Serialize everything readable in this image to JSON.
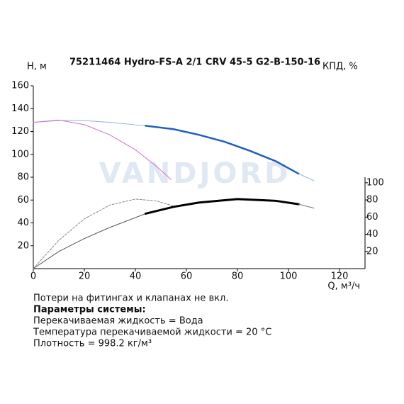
{
  "chart_data": {
    "type": "line",
    "title": "75211464 Hydro-FS-A 2/1 CRV 45-5 G2-B-150-16",
    "y_label": "H, м",
    "y2_label": "КПД, %",
    "x_label": "Q, м³/ч",
    "watermark": "VANDJORD",
    "xlim": [
      0,
      130
    ],
    "xticks": [
      0,
      20,
      40,
      60,
      80,
      100,
      120
    ],
    "ylim": [
      0,
      160
    ],
    "yticks": [
      20,
      40,
      60,
      80,
      100,
      120,
      140,
      160
    ],
    "y2lim": [
      0,
      213
    ],
    "y2ticks": [
      20,
      40,
      60,
      80,
      100
    ],
    "series": [
      {
        "color": "#8fb3dd",
        "width": 1,
        "x": [
          0,
          10,
          20,
          30,
          44
        ],
        "values": [
          128,
          129.5,
          129.5,
          128,
          125
        ]
      },
      {
        "color": "#1f5fbf",
        "width": 2.5,
        "x": [
          44,
          55,
          65,
          75,
          85,
          95,
          104
        ],
        "values": [
          125,
          122,
          117,
          111,
          103,
          94,
          83
        ]
      },
      {
        "color": "#8fb3dd",
        "width": 1,
        "x": [
          104,
          110
        ],
        "values": [
          83,
          77
        ]
      },
      {
        "color": "#d070d0",
        "width": 1,
        "x": [
          0,
          10,
          20,
          30,
          40,
          48,
          54
        ],
        "values": [
          128,
          130,
          126,
          117,
          104,
          90,
          78
        ]
      },
      {
        "color": "#555555",
        "width": 1,
        "axis": "y2",
        "x": [
          0,
          10,
          20,
          30,
          44
        ],
        "values": [
          0,
          20,
          35,
          48,
          64
        ]
      },
      {
        "color": "#000000",
        "width": 3,
        "axis": "y2",
        "x": [
          44,
          55,
          65,
          80,
          95,
          104
        ],
        "values": [
          64,
          72,
          77,
          81,
          79,
          75
        ]
      },
      {
        "color": "#777777",
        "width": 1,
        "axis": "y2",
        "x": [
          104,
          110
        ],
        "values": [
          75,
          70.5
        ]
      },
      {
        "color": "#888888",
        "width": 1,
        "dash": "3 2",
        "axis": "y2",
        "x": [
          0,
          10,
          20,
          30,
          40,
          48,
          55
        ],
        "values": [
          0,
          33,
          58,
          74,
          81,
          79,
          73
        ]
      }
    ],
    "notes": [
      "Потери на фитингах и клапанах не вкл.",
      "Параметры системы:",
      "Перекачиваемая жидкость = Вода",
      "Температура перекачиваемой жидкости = 20 °C",
      "Плотность = 998.2 кг/м³"
    ]
  }
}
